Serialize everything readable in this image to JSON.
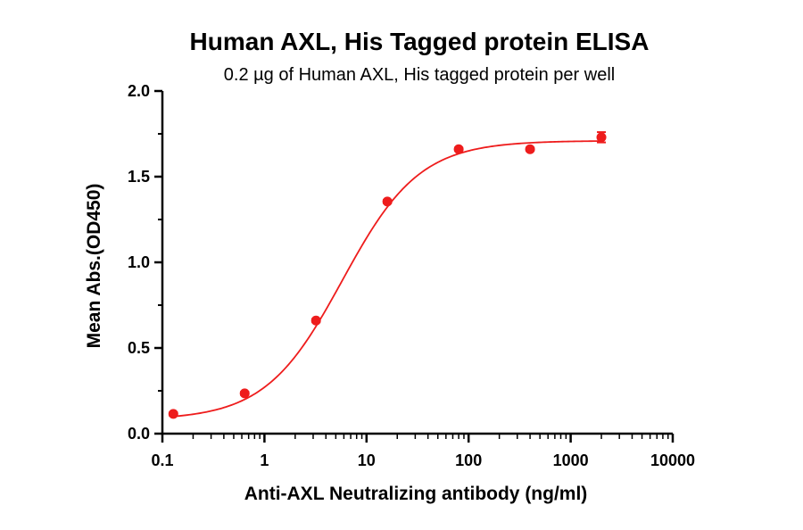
{
  "chart_data": {
    "type": "scatter",
    "title": "Human AXL, His Tagged protein ELISA",
    "subtitle": "0.2 µg of Human AXL, His tagged protein per well",
    "xlabel": "Anti-AXL Neutralizing antibody (ng/ml)",
    "ylabel": "Mean Abs.(OD450)",
    "x_scale": "log",
    "xlim": [
      0.1,
      10000
    ],
    "ylim": [
      0.0,
      2.0
    ],
    "x_ticks": [
      0.1,
      1,
      10,
      100,
      1000,
      10000
    ],
    "x_tick_labels": [
      "0.1",
      "1",
      "10",
      "100",
      "1000",
      "10000"
    ],
    "y_ticks": [
      0.0,
      0.5,
      1.0,
      1.5,
      2.0
    ],
    "y_tick_labels": [
      "0.0",
      "0.5",
      "1.0",
      "1.5",
      "2.0"
    ],
    "grid": false,
    "legend": "none",
    "color": "#ee1c1c",
    "series": [
      {
        "points": [
          {
            "x": 0.128,
            "y": 0.115,
            "err": 0.01
          },
          {
            "x": 0.64,
            "y": 0.235,
            "err": 0.01
          },
          {
            "x": 3.2,
            "y": 0.66,
            "err": 0.01
          },
          {
            "x": 16,
            "y": 1.355,
            "err": 0.01
          },
          {
            "x": 80,
            "y": 1.66,
            "err": 0.01
          },
          {
            "x": 400,
            "y": 1.66,
            "err": 0.01
          },
          {
            "x": 2000,
            "y": 1.73,
            "err": 0.03
          }
        ],
        "fit": {
          "model": "4PL",
          "bottom": 0.08,
          "top": 1.71,
          "ec50": 5.8,
          "hill": 1.15
        }
      }
    ]
  }
}
